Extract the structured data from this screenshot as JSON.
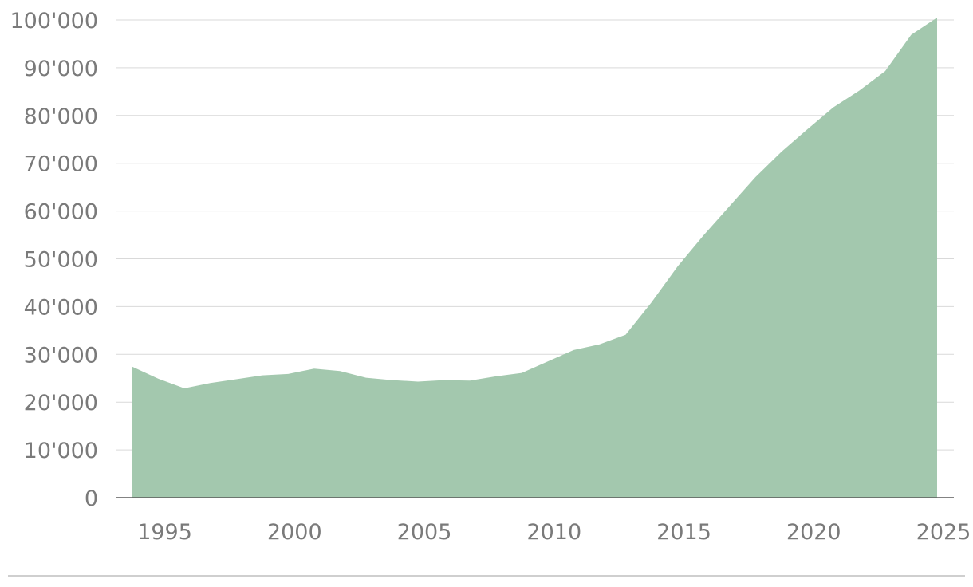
{
  "chart_data": {
    "type": "area",
    "title": "",
    "xlabel": "",
    "ylabel": "",
    "xlim": [
      1994,
      2025
    ],
    "ylim": [
      0,
      100000
    ],
    "grid": true,
    "color": "#a3c8ae",
    "x": [
      1994,
      1995,
      1996,
      1997,
      1998,
      1999,
      2000,
      2001,
      2002,
      2003,
      2004,
      2005,
      2006,
      2007,
      2008,
      2009,
      2010,
      2011,
      2012,
      2013,
      2014,
      2015,
      2016,
      2017,
      2018,
      2019,
      2020,
      2021,
      2022,
      2023,
      2024,
      2025
    ],
    "series": [
      {
        "values": [
          27400,
          24900,
          22900,
          24000,
          24800,
          25600,
          25900,
          27000,
          26500,
          25100,
          24600,
          24300,
          24600,
          24500,
          25400,
          26100,
          28500,
          30900,
          32100,
          34100,
          40900,
          48400,
          54900,
          61000,
          67100,
          72400,
          77100,
          81700,
          85200,
          89300,
          96900,
          100500
        ]
      }
    ],
    "y_tick_labels": [
      "0",
      "10'000",
      "20'000",
      "30'000",
      "40'000",
      "50'000",
      "60'000",
      "70'000",
      "80'000",
      "90'000",
      "100'000"
    ],
    "x_tick_labels": [
      "1995",
      "2000",
      "2005",
      "2010",
      "2015",
      "2020",
      "2025"
    ]
  }
}
